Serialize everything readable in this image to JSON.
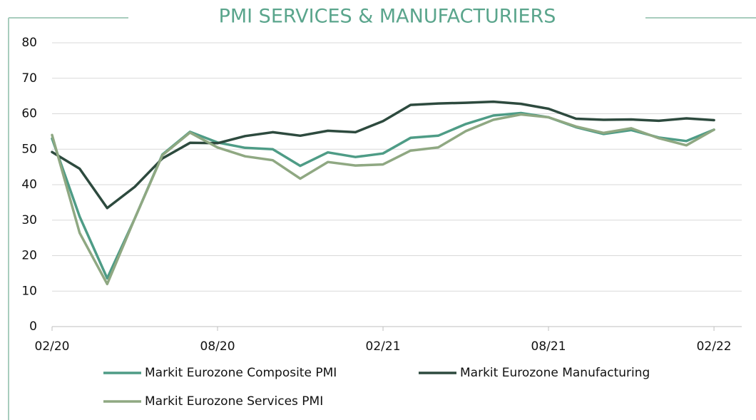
{
  "chart_data": {
    "type": "line",
    "title": "PMI SERVICES & MANUFACTURIERS",
    "categories": [
      "02/20",
      null,
      null,
      null,
      null,
      null,
      "08/20",
      null,
      null,
      null,
      null,
      null,
      "02/21",
      null,
      null,
      null,
      null,
      null,
      "08/21",
      null,
      null,
      null,
      null,
      null,
      "02/22"
    ],
    "series": [
      {
        "name": "Markit Eurozone Composite PMI",
        "color": "#4e9c86",
        "values": [
          53,
          31,
          13.6,
          30.5,
          48.5,
          54.9,
          51.9,
          50.4,
          50.0,
          45.3,
          49.1,
          47.8,
          48.8,
          53.2,
          53.8,
          57.1,
          59.5,
          60.2,
          59.0,
          56.2,
          54.3,
          55.4,
          53.3,
          52.3,
          55.5
        ]
      },
      {
        "name": "Markit Eurozone Manufacturing",
        "color": "#2d4a3e",
        "values": [
          49.2,
          44.5,
          33.4,
          39.4,
          47.4,
          51.8,
          51.7,
          53.7,
          54.8,
          53.8,
          55.2,
          54.8,
          57.9,
          62.5,
          62.9,
          63.1,
          63.4,
          62.8,
          61.4,
          58.6,
          58.3,
          58.4,
          58.0,
          58.7,
          58.2
        ]
      },
      {
        "name": "Markit Eurozone Services PMI",
        "color": "#8fa882",
        "values": [
          54,
          26.4,
          12,
          30.5,
          48.3,
          54.7,
          50.5,
          48.0,
          46.9,
          41.7,
          46.4,
          45.4,
          45.7,
          49.6,
          50.5,
          55.1,
          58.3,
          59.8,
          59.0,
          56.4,
          54.6,
          55.9,
          53.1,
          51.1,
          55.5
        ]
      }
    ],
    "ylim": [
      0,
      80
    ],
    "yticks": [
      0,
      10,
      20,
      30,
      40,
      50,
      60,
      70,
      80
    ],
    "grid": true
  }
}
